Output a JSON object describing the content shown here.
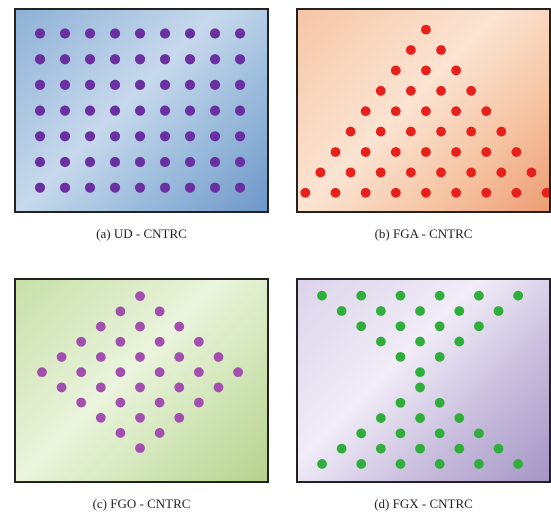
{
  "panels": [
    {
      "id": "a",
      "caption": "(a)  UD - CNTRC",
      "dot_color": "#6a2fa0",
      "pattern": "uniform-grid"
    },
    {
      "id": "b",
      "caption": "(b) FGA - CNTRC",
      "dot_color": "#e8201c",
      "pattern": "triangle"
    },
    {
      "id": "c",
      "caption": "(c) FGO - CNTRC",
      "dot_color": "#a24fb0",
      "pattern": "diamond"
    },
    {
      "id": "d",
      "caption": "(d) FGX - CNTRC",
      "dot_color": "#2fae3c",
      "pattern": "hourglass"
    }
  ]
}
